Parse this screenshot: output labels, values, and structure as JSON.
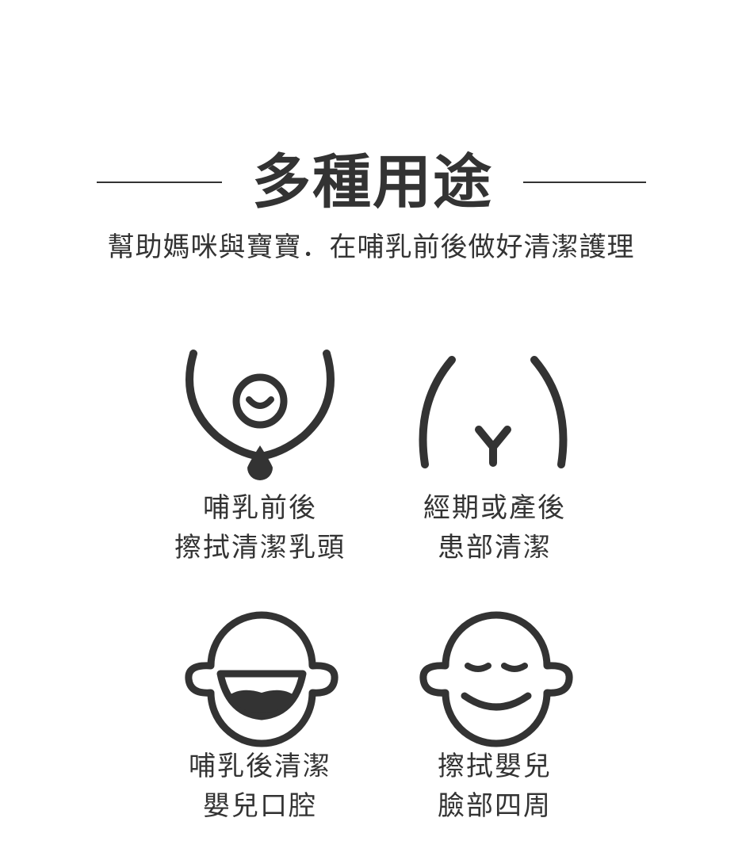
{
  "header": {
    "title": "多種用途",
    "subtitle": "幫助媽咪與寶寶．在哺乳前後做好清潔護理"
  },
  "uses": [
    {
      "icon": "breast-nipple-icon",
      "line1": "哺乳前後",
      "line2": "擦拭清潔乳頭"
    },
    {
      "icon": "lower-body-icon",
      "line1": "經期或產後",
      "line2": "患部清潔"
    },
    {
      "icon": "baby-open-mouth-icon",
      "line1": "哺乳後清潔",
      "line2": "嬰兒口腔"
    },
    {
      "icon": "baby-smiling-face-icon",
      "line1": "擦拭嬰兒",
      "line2": "臉部四周"
    }
  ],
  "colors": {
    "ink": "#333333",
    "background": "#ffffff"
  }
}
